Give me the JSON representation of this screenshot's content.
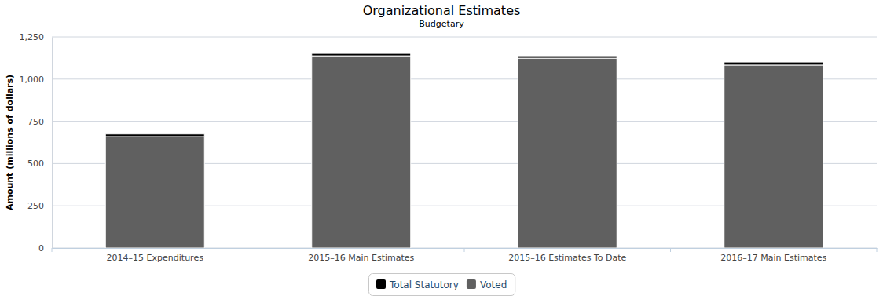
{
  "chart_data": {
    "type": "bar",
    "title": "Organizational Estimates",
    "subtitle": "Budgetary",
    "y_label": "Amount (millions of dollars)",
    "categories": [
      "2014–15 Expenditures",
      "2015–16 Main Estimates",
      "2015–16 Estimates To Date",
      "2016–17 Main Estimates"
    ],
    "series": [
      {
        "name": "Total Statutory",
        "color": "#000000",
        "values": [
          15,
          14,
          14,
          18
        ]
      },
      {
        "name": "Voted",
        "color": "#606060",
        "values": [
          660,
          1138,
          1124,
          1083
        ]
      }
    ],
    "stacked": true,
    "ylim": [
      0,
      1250
    ],
    "yticks": [
      0,
      250,
      500,
      750,
      {
        "value": 1000,
        "label": "1,000"
      },
      {
        "value": 1250,
        "label": "1,250"
      }
    ],
    "grid": true,
    "legend": "bottom"
  }
}
